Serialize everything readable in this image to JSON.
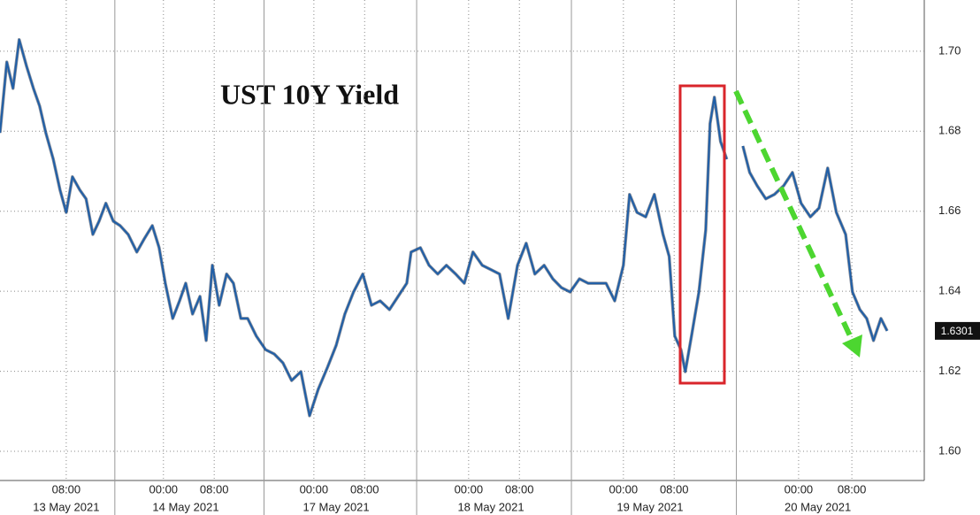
{
  "chart_data": {
    "type": "line",
    "title": "UST 10Y Yield",
    "x": [
      0,
      1.1,
      2.1,
      3.1,
      4.3,
      5.4,
      6.4,
      7.4,
      8.6,
      9.7,
      10.7,
      11.7,
      12.9,
      13.9,
      15,
      16,
      17.1,
      18.3,
      19.4,
      20.7,
      22.1,
      23.3,
      24.6,
      25.7,
      26.7,
      27.9,
      29,
      30,
      31.1,
      32.3,
      33.3,
      34.3,
      35.4,
      36.6,
      37.7,
      38.9,
      40,
      41.4,
      42.9,
      44.3,
      45.7,
      47.1,
      48.6,
      50,
      51.4,
      52.9,
      54.3,
      55.7,
      57.1,
      58.6,
      60,
      61.4,
      62.9,
      64.3,
      65.7,
      66.4,
      67.9,
      69.3,
      70.7,
      72.1,
      73.6,
      75,
      76.4,
      77.9,
      79.3,
      80.7,
      82.1,
      83.6,
      85,
      86.4,
      87.9,
      89.3,
      90.7,
      92.1,
      93.6,
      95,
      96.4,
      97.9,
      99.3,
      100.7,
      101.7,
      102.9,
      104.3,
      105.7,
      107.1,
      108.1,
      109,
      110,
      110.7,
      111.7,
      112.9,
      114,
      114.7,
      115.4,
      116.4,
      117.4,
      118.4,
      120,
      121.1,
      122.3,
      123.7,
      125.1,
      126.6,
      128,
      129.4,
      130.9,
      132.3,
      133.7,
      135.1,
      136.6,
      137.7,
      138.9,
      140,
      141.1,
      142.3,
      143.3
    ],
    "series": [
      {
        "color": "#1f5fa8",
        "values": [
          1.6796,
          1.6973,
          1.6907,
          1.7029,
          1.6962,
          1.6907,
          1.6863,
          1.6796,
          1.673,
          1.6653,
          1.6597,
          1.6686,
          1.6653,
          1.6631,
          1.6542,
          1.6575,
          1.662,
          1.6575,
          1.6564,
          1.6542,
          1.6498,
          1.6531,
          1.6564,
          1.6509,
          1.642,
          1.6332,
          1.6376,
          1.642,
          1.6343,
          1.6387,
          1.6277,
          1.6465,
          1.6365,
          1.6443,
          1.642,
          1.6332,
          1.6332,
          1.6288,
          1.6254,
          1.6243,
          1.6221,
          1.6177,
          1.6199,
          1.6089,
          1.6155,
          1.621,
          1.6265,
          1.6343,
          1.6398,
          1.6443,
          1.6365,
          1.6376,
          1.6354,
          1.6387,
          1.642,
          1.6498,
          1.6509,
          1.6465,
          1.6443,
          1.6465,
          1.6443,
          1.642,
          1.6498,
          1.6465,
          1.6454,
          1.6443,
          1.6332,
          1.6465,
          1.652,
          1.6443,
          1.6465,
          1.6431,
          1.6409,
          1.6398,
          1.6431,
          1.642,
          1.642,
          1.642,
          1.6376,
          1.6465,
          1.6642,
          1.6597,
          1.6586,
          1.6642,
          1.6542,
          1.6487,
          1.6288,
          1.6254,
          1.6199,
          1.6288,
          1.6398,
          1.6553,
          1.6819,
          1.6885,
          1.6774,
          1.673,
          null,
          1.6763,
          1.6697,
          1.6664,
          1.6631,
          1.6642,
          1.6664,
          1.6697,
          1.662,
          1.6586,
          1.6608,
          1.6708,
          1.6597,
          1.6542,
          1.6398,
          1.6354,
          1.6332,
          1.6277,
          1.6332,
          1.6301
        ]
      }
    ],
    "last_price": 1.6301,
    "xlim": [
      0,
      149.3
    ],
    "xticks": [
      {
        "value": 10.7,
        "label": "08:00"
      },
      {
        "value": 26.4,
        "label": "00:00"
      },
      {
        "value": 34.6,
        "label": "08:00"
      },
      {
        "value": 50.7,
        "label": "00:00"
      },
      {
        "value": 58.9,
        "label": "08:00"
      },
      {
        "value": 75.7,
        "label": "00:00"
      },
      {
        "value": 83.9,
        "label": "08:00"
      },
      {
        "value": 100.7,
        "label": "00:00"
      },
      {
        "value": 108.9,
        "label": "08:00"
      },
      {
        "value": 129,
        "label": "00:00"
      },
      {
        "value": 137.6,
        "label": "08:00"
      }
    ],
    "x_date_labels": [
      {
        "value": 10.7,
        "label": "13 May 2021"
      },
      {
        "value": 30,
        "label": "14 May 2021"
      },
      {
        "value": 54.3,
        "label": "17 May 2021"
      },
      {
        "value": 79.3,
        "label": "18 May 2021"
      },
      {
        "value": 105,
        "label": "19 May 2021"
      },
      {
        "value": 132.1,
        "label": "20 May 2021"
      }
    ],
    "ylim": [
      1.5927,
      1.7128
    ],
    "yticks": [
      {
        "value": 1.6,
        "label": "1.60"
      },
      1.62,
      1.64,
      1.66,
      1.68,
      {
        "value": 1.7,
        "label": "1.70"
      }
    ],
    "grid": true
  }
}
